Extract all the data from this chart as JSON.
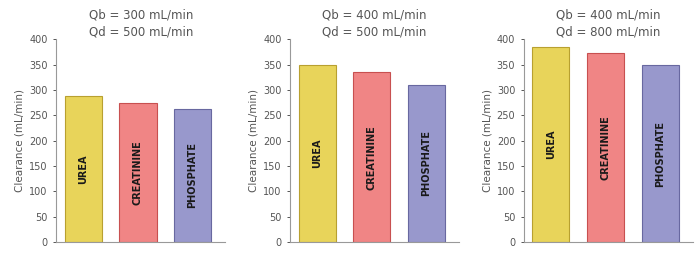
{
  "panels": [
    {
      "title": "Qb = 300 mL/min\nQd = 500 mL/min",
      "values": [
        288,
        275,
        263
      ]
    },
    {
      "title": "Qb = 400 mL/min\nQd = 500 mL/min",
      "values": [
        350,
        335,
        311
      ]
    },
    {
      "title": "Qb = 400 mL/min\nQd = 800 mL/min",
      "values": [
        385,
        373,
        349
      ]
    }
  ],
  "bar_labels": [
    "UREA",
    "CREATININE",
    "PHOSPHATE"
  ],
  "bar_colors": [
    "#E8D45A",
    "#F08585",
    "#9898CC"
  ],
  "bar_edge_colors": [
    "#B8A030",
    "#C85050",
    "#6868A0"
  ],
  "ylabel": "Clearance (mL/min)",
  "ylim": [
    0,
    400
  ],
  "yticks": [
    0,
    50,
    100,
    150,
    200,
    250,
    300,
    350,
    400
  ],
  "title_fontsize": 8.5,
  "ylabel_fontsize": 7.5,
  "tick_fontsize": 7,
  "bar_label_fontsize": 7,
  "background_color": "#ffffff",
  "spine_color": "#999999",
  "title_color": "#555555",
  "tick_color": "#555555",
  "text_color": "#1a1a1a"
}
